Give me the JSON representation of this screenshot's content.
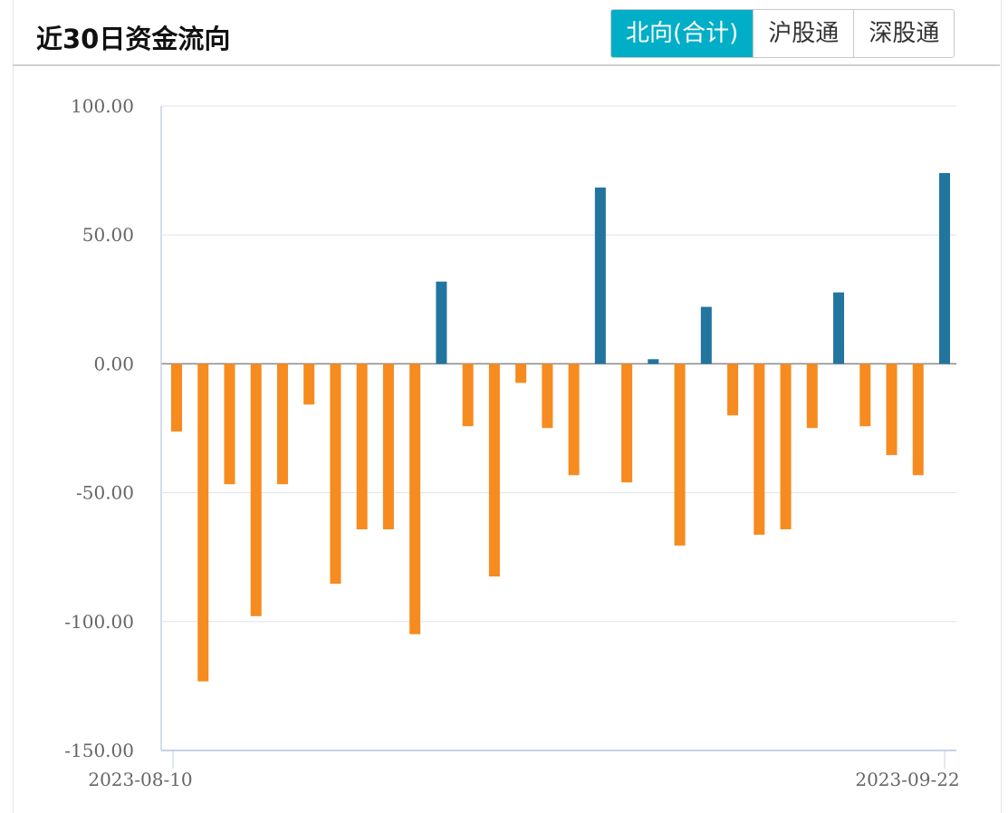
{
  "header": {
    "title": "近30日资金流向",
    "tabs": [
      {
        "label": "北向(合计)",
        "active": true
      },
      {
        "label": "沪股通",
        "active": false
      },
      {
        "label": "深股通",
        "active": false
      }
    ]
  },
  "colors": {
    "positive": "#21759f",
    "negative": "#f68b1f",
    "active_tab": "#00aec7"
  },
  "chart_data": {
    "type": "bar",
    "title": "",
    "xlabel": "",
    "ylabel": "",
    "ylim": [
      -150,
      100
    ],
    "yticks": [
      "100.00",
      "50.00",
      "0.00",
      "-50.00",
      "-100.00",
      "-150.00"
    ],
    "ytick_values": [
      100,
      50,
      0,
      -50,
      -100,
      -150
    ],
    "xticks": [
      "2023-08-10",
      "2023-09-22"
    ],
    "grid": true,
    "values": [
      -26.3,
      -123.2,
      -46.7,
      -97.9,
      -46.7,
      -15.8,
      -85.3,
      -64.2,
      -64.2,
      -104.9,
      31.9,
      -24.2,
      -82.5,
      -7.4,
      -24.9,
      -43.2,
      68.4,
      -46.0,
      1.8,
      -70.5,
      22.1,
      -20.0,
      -66.3,
      -64.2,
      -24.9,
      27.7,
      -24.2,
      -35.4,
      -43.2,
      74.0
    ]
  }
}
